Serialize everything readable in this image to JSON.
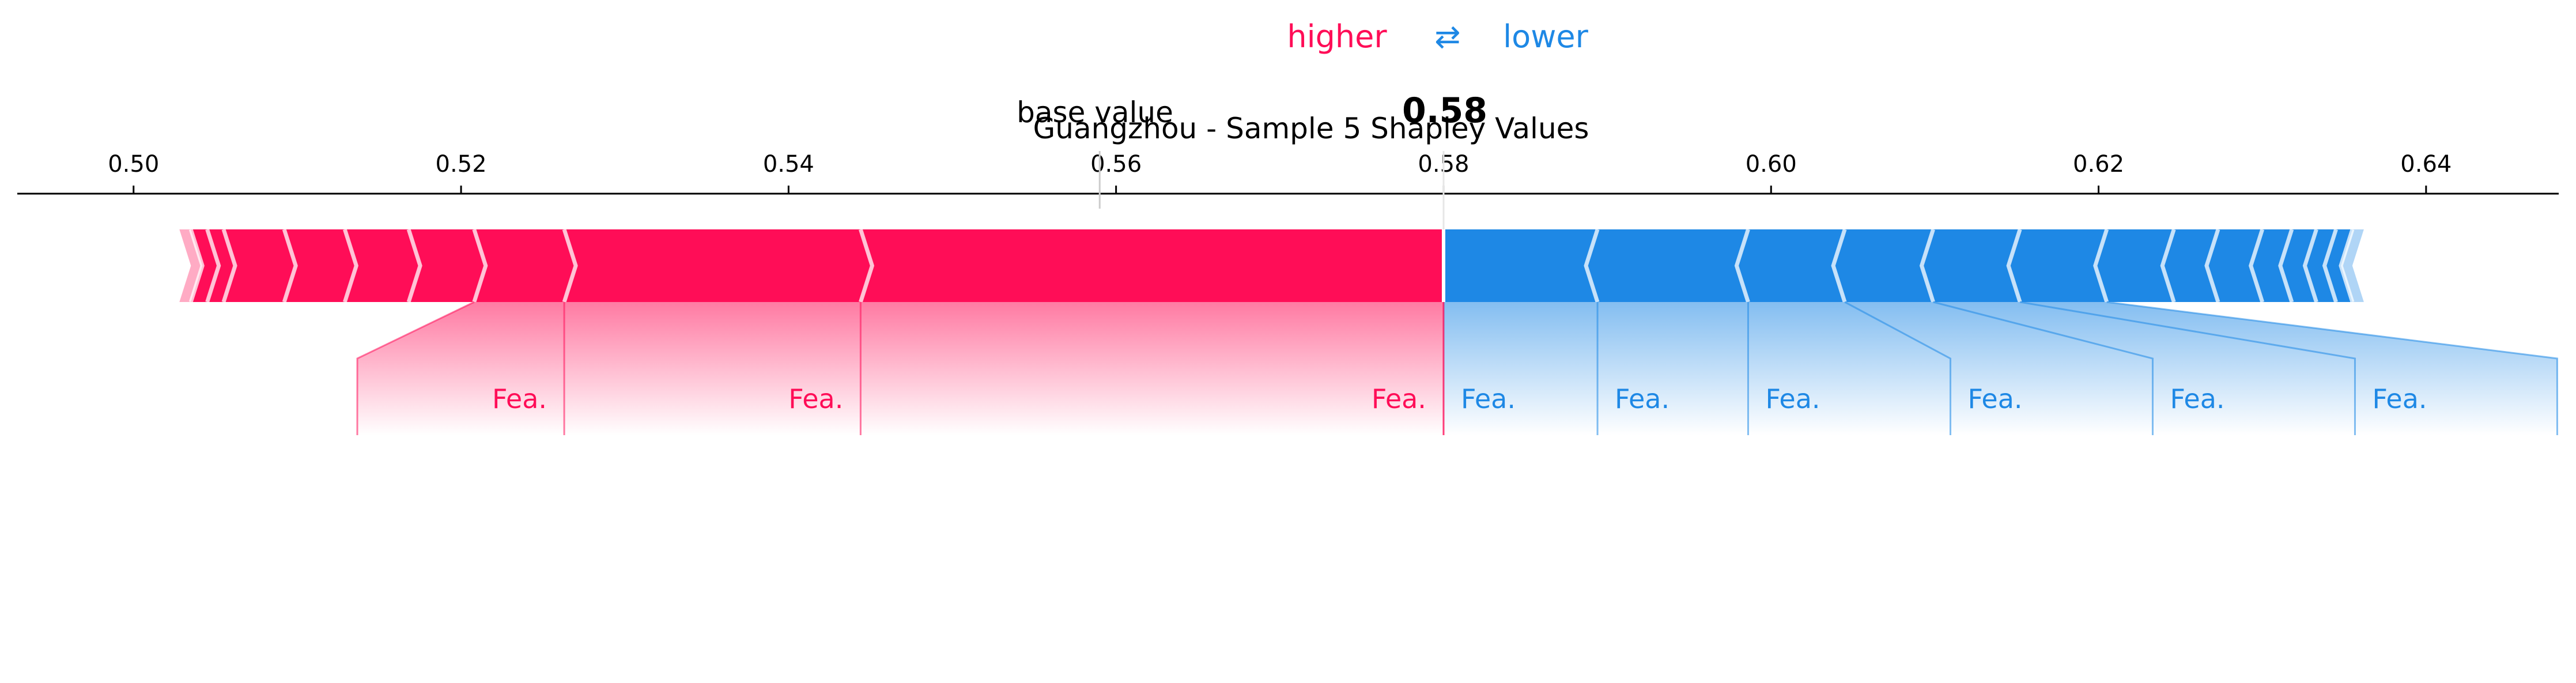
{
  "chart_data": {
    "type": "bar",
    "title": "Guangzhou - Sample 5 Shapley Values",
    "legend": {
      "higher": "higher",
      "arrow": "⇄",
      "lower": "lower",
      "placement": "top-center"
    },
    "base_value_label": "base value",
    "base_value": 0.559,
    "output_value": 0.58,
    "output_value_label": "0.58",
    "xlim": [
      0.4929,
      0.6481
    ],
    "ticks": [
      0.5,
      0.52,
      0.54,
      0.56,
      0.58,
      0.6,
      0.62,
      0.64
    ],
    "tick_labels": [
      "0.50",
      "0.52",
      "0.54",
      "0.56",
      "0.58",
      "0.60",
      "0.62",
      "0.64"
    ],
    "colors": {
      "positive": "#ff0d57",
      "negative": "#1e88e5",
      "axis": "#000000"
    },
    "positive_effects": [
      {
        "from": 0.5444,
        "to": 0.58,
        "label": "Fea."
      },
      {
        "from": 0.5263,
        "to": 0.5444,
        "label": "Fea."
      },
      {
        "from": 0.5208,
        "to": 0.5263,
        "label": "Fea."
      },
      {
        "from": 0.5168,
        "to": 0.5208
      },
      {
        "from": 0.5129,
        "to": 0.5168
      },
      {
        "from": 0.5092,
        "to": 0.5129
      },
      {
        "from": 0.5055,
        "to": 0.5092
      },
      {
        "from": 0.5045,
        "to": 0.5055
      },
      {
        "from": 0.5035,
        "to": 0.5045
      },
      {
        "from": 0.5028,
        "to": 0.5035
      }
    ],
    "negative_effects": [
      {
        "from": 0.58,
        "to": 0.5894,
        "label": "Fea."
      },
      {
        "from": 0.5894,
        "to": 0.5986,
        "label": "Fea."
      },
      {
        "from": 0.5986,
        "to": 0.6045,
        "label": "Fea."
      },
      {
        "from": 0.6045,
        "to": 0.6099,
        "label": "Fea."
      },
      {
        "from": 0.6099,
        "to": 0.6152,
        "label": "Fea."
      },
      {
        "from": 0.6152,
        "to": 0.6205,
        "label": "Fea."
      },
      {
        "from": 0.6205,
        "to": 0.6246
      },
      {
        "from": 0.6246,
        "to": 0.6273
      },
      {
        "from": 0.6273,
        "to": 0.63
      },
      {
        "from": 0.63,
        "to": 0.6318
      },
      {
        "from": 0.6318,
        "to": 0.6333
      },
      {
        "from": 0.6333,
        "to": 0.6345
      },
      {
        "from": 0.6345,
        "to": 0.6355
      },
      {
        "from": 0.6355,
        "to": 0.6362
      }
    ]
  }
}
